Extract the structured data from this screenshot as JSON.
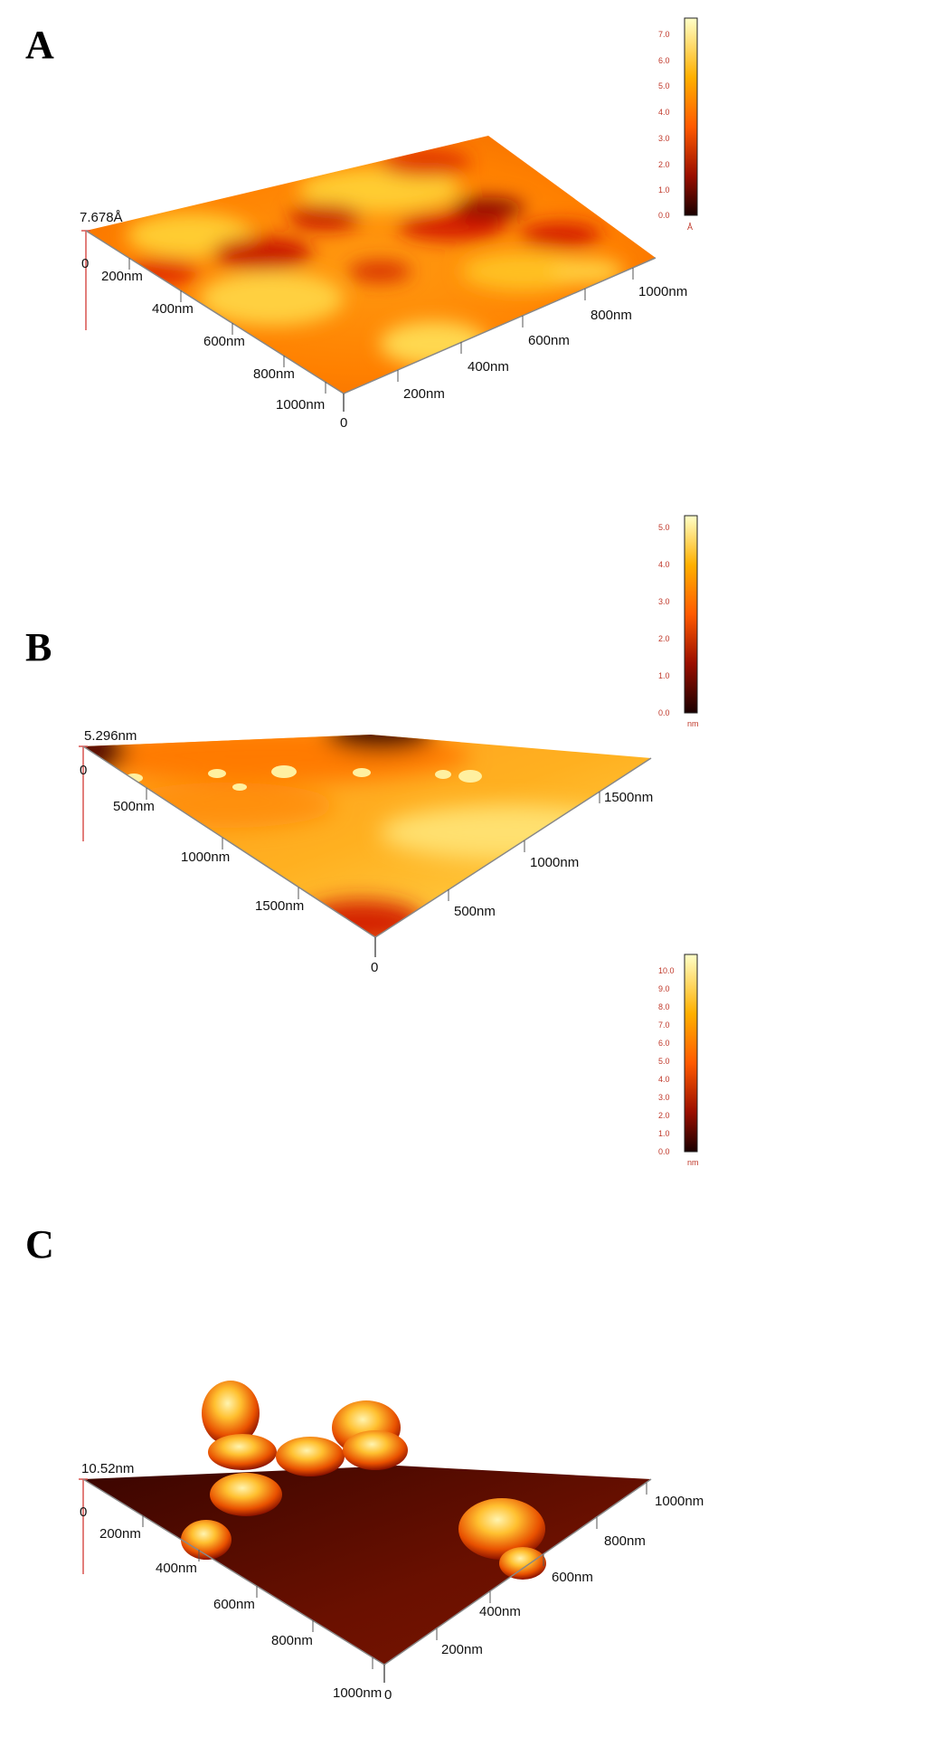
{
  "panels": [
    {
      "letter": "A",
      "z_max_label": "7.678Å",
      "origin_label": "0",
      "left_axis_ticks": [
        "200nm",
        "400nm",
        "600nm",
        "800nm",
        "1000nm"
      ],
      "right_axis_ticks": [
        "200nm",
        "400nm",
        "600nm",
        "800nm",
        "1000nm"
      ],
      "right_axis_origin": "0",
      "colorbar_ticks": [
        "0.0",
        "1.0",
        "2.0",
        "3.0",
        "4.0",
        "5.0",
        "6.0",
        "7.0"
      ],
      "colorbar_unit": "Å"
    },
    {
      "letter": "B",
      "z_max_label": "5.296nm",
      "origin_label": "0",
      "left_axis_ticks": [
        "500nm",
        "1000nm",
        "1500nm"
      ],
      "right_axis_ticks": [
        "500nm",
        "1000nm",
        "1500nm"
      ],
      "right_axis_origin": "0",
      "colorbar_ticks": [
        "0.0",
        "1.0",
        "2.0",
        "3.0",
        "4.0",
        "5.0"
      ],
      "colorbar_unit": "nm"
    },
    {
      "letter": "C",
      "z_max_label": "10.52nm",
      "origin_label": "0",
      "left_axis_ticks": [
        "200nm",
        "400nm",
        "600nm",
        "800nm",
        "1000nm"
      ],
      "right_axis_ticks": [
        "200nm",
        "400nm",
        "600nm",
        "800nm",
        "1000nm"
      ],
      "right_axis_origin": "0",
      "colorbar_ticks": [
        "0.0",
        "1.0",
        "2.0",
        "3.0",
        "4.0",
        "5.0",
        "6.0",
        "7.0",
        "8.0",
        "9.0",
        "10.0"
      ],
      "colorbar_unit": "nm"
    }
  ],
  "colors": {
    "colormap": [
      "#1a0000",
      "#7a0a00",
      "#d41e00",
      "#ff6a00",
      "#ffb000",
      "#ffe64a",
      "#ffffc8"
    ],
    "axis_red": "#d9534f"
  }
}
